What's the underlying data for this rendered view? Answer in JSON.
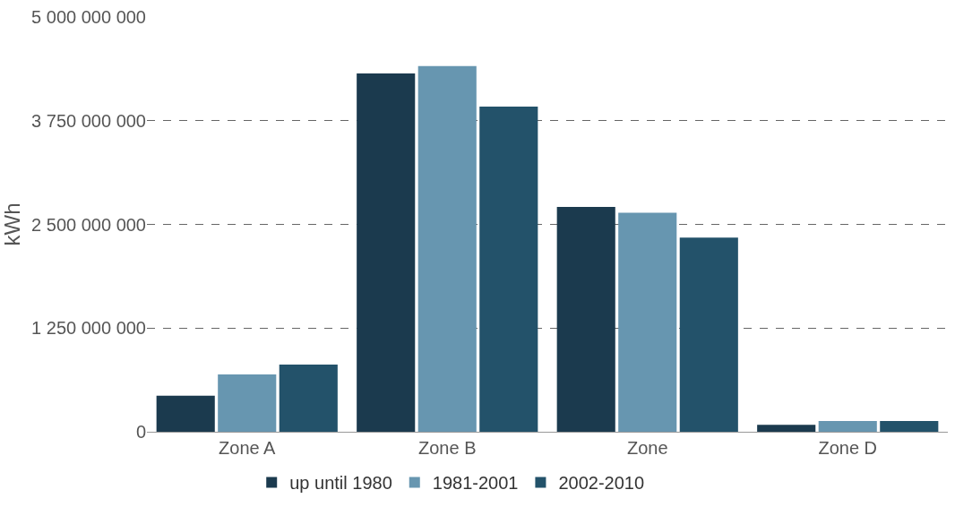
{
  "chart_data": {
    "type": "bar",
    "ylabel": "kWh",
    "categories": [
      "Zone A",
      "Zone B",
      "Zone",
      "Zone D"
    ],
    "series": [
      {
        "name": "up until 1980",
        "color": "#1b3a4e",
        "values": [
          435000000,
          4320000000,
          2710000000,
          85000000
        ]
      },
      {
        "name": "1981-2001",
        "color": "#6796b0",
        "values": [
          690000000,
          4410000000,
          2640000000,
          130000000
        ]
      },
      {
        "name": "2002-2010",
        "color": "#23526a",
        "values": [
          810000000,
          3920000000,
          2340000000,
          130000000
        ]
      }
    ],
    "ylim": [
      0,
      5000000000
    ],
    "yticks": [
      {
        "value": 0,
        "label": "0"
      },
      {
        "value": 1250000000,
        "label": "1 250 000 000"
      },
      {
        "value": 2500000000,
        "label": "2 500 000 000"
      },
      {
        "value": 3750000000,
        "label": "3 750 000 000"
      },
      {
        "value": 5000000000,
        "label": "5 000 000 000"
      }
    ],
    "grid": "y",
    "legend": "bottom"
  }
}
